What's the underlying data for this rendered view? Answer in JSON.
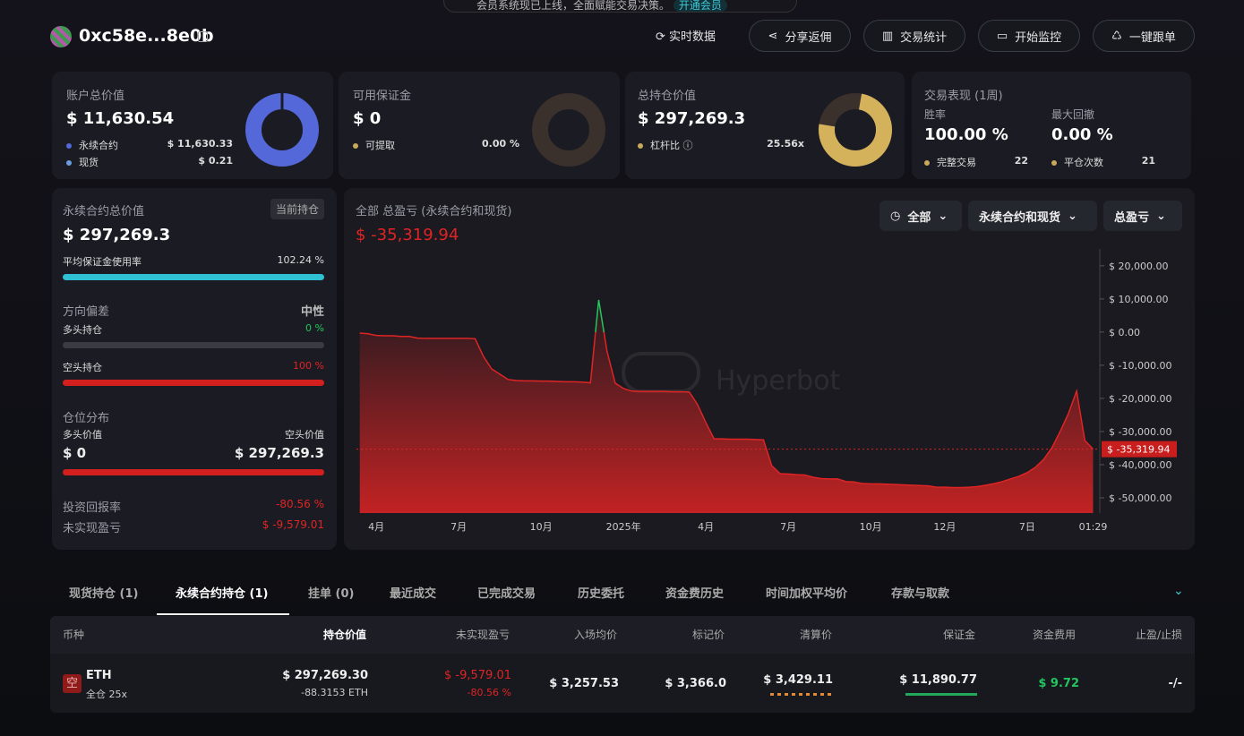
{
  "banner": {
    "text": "会员系统现已上线，全面赋能交易决策。",
    "link": "开通会员"
  },
  "header": {
    "address": "0xc58e...8e0b",
    "buttons": [
      "实时数据",
      "分享返佣",
      "交易统计",
      "开始监控",
      "一键跟单"
    ]
  },
  "cards": [
    {
      "title": "账户总价值",
      "value": "$ 11,630.54",
      "rows": [
        [
          "永续合约",
          "$ 11,630.33"
        ],
        [
          "现货",
          "$ 0.21"
        ]
      ]
    },
    {
      "title": "可用保证金",
      "value": "$ 0",
      "rows": [
        [
          "可提取",
          "0.00 %"
        ]
      ]
    },
    {
      "title": "总持仓价值",
      "value": "$ 297,269.3",
      "rows": [
        [
          "杠杆比",
          "25.56x"
        ]
      ]
    },
    {
      "title": "交易表现 (1周)",
      "stats": [
        [
          "胜率",
          "100.00 %"
        ],
        [
          "最大回撤",
          "0.00 %"
        ]
      ],
      "rows": [
        [
          "完整交易",
          "22"
        ],
        [
          "平仓次数",
          "21"
        ]
      ]
    }
  ],
  "perp_panel": {
    "title": "永续合约总价值",
    "tag": "当前持仓",
    "value": "$ 297,269.3",
    "margin_usage": [
      "平均保证金使用率",
      "102.24 %"
    ],
    "bias": {
      "title": "方向偏差",
      "value": "中性",
      "long": [
        "多头持仓",
        "0 %"
      ],
      "short": [
        "空头持仓",
        "100 %"
      ]
    },
    "distribution": {
      "title": "仓位分布",
      "long_label": "多头价值",
      "short_label": "空头价值",
      "long_value": "$ 0",
      "short_value": "$ 297,269.3"
    },
    "roi": [
      "投资回报率",
      "-80.56 %"
    ],
    "upnl": [
      "未实现盈亏",
      "$ -9,579.01"
    ]
  },
  "chart_data": {
    "type": "area",
    "title": "全部 总盈亏 (永续合约和现货)",
    "value_label": "$ -35,319.94",
    "filters": [
      "全部",
      "永续合约和现货",
      "总盈亏"
    ],
    "watermark": "Hyperbot",
    "color": "#e02424",
    "up_color": "#22c55e",
    "categories": [
      null,
      null,
      "4月",
      null,
      null,
      null,
      null,
      null,
      null,
      null,
      null,
      null,
      "7月",
      null,
      null,
      null,
      null,
      null,
      null,
      null,
      null,
      null,
      "10月",
      null,
      null,
      null,
      null,
      null,
      null,
      null,
      null,
      null,
      "2025年",
      null,
      null,
      null,
      null,
      null,
      null,
      null,
      null,
      null,
      "4月",
      null,
      null,
      null,
      null,
      null,
      null,
      null,
      null,
      null,
      "7月",
      null,
      null,
      null,
      null,
      null,
      null,
      null,
      null,
      null,
      "10月",
      null,
      null,
      null,
      null,
      null,
      null,
      null,
      null,
      "12月",
      null,
      null,
      null,
      null,
      null,
      null,
      null,
      null,
      null,
      "7日",
      null,
      null,
      null,
      null,
      null,
      null,
      null,
      "01:29"
    ],
    "values": [
      -300,
      -500,
      -1000,
      -1100,
      -1100,
      -1300,
      -1300,
      -1800,
      -1900,
      -1900,
      -1900,
      -1900,
      -1900,
      -1900,
      -2000,
      -7300,
      -11100,
      -12700,
      -14300,
      -14600,
      -14700,
      -14700,
      -14800,
      -14800,
      -14900,
      -15000,
      -15000,
      -15100,
      -15300,
      9700,
      -5700,
      -15400,
      -17000,
      -17800,
      -17900,
      -17900,
      -17900,
      -17900,
      -18000,
      -18000,
      -18100,
      -21900,
      -27300,
      -32200,
      -32200,
      -32300,
      -32300,
      -32300,
      -32400,
      -32500,
      -40300,
      -42700,
      -42800,
      -43000,
      -43100,
      -43800,
      -44200,
      -44300,
      -44300,
      -45100,
      -45200,
      -45700,
      -45800,
      -45800,
      -45900,
      -46000,
      -46100,
      -46200,
      -46300,
      -46400,
      -46800,
      -46800,
      -46900,
      -46900,
      -46800,
      -46600,
      -46200,
      -45700,
      -45100,
      -44300,
      -43500,
      -42400,
      -40800,
      -38400,
      -34900,
      -30000,
      -24600,
      -17800,
      -32700,
      -35319.94
    ],
    "ylim": [
      -54600,
      25100
    ],
    "yticks": [
      {
        "value": 20000,
        "label": "$ 20,000.00"
      },
      {
        "value": 10000,
        "label": "$ 10,000.00"
      },
      {
        "value": 0,
        "label": "$ 0.00"
      },
      {
        "value": -10000,
        "label": "$ -10,000.00"
      },
      {
        "value": -20000,
        "label": "$ -20,000.00"
      },
      {
        "value": -30000,
        "label": "$ -30,000.00"
      },
      {
        "value": -40000,
        "label": "$ -40,000.00"
      },
      {
        "value": -50000,
        "label": "$ -50,000.00"
      }
    ],
    "current": {
      "value": -35319.94,
      "label": "$ -35,319.94"
    }
  },
  "positions": {
    "tabs": [
      "现货持仓 (1)",
      "永续合约持仓 (1)",
      "挂单 (0)",
      "最近成交",
      "已完成交易",
      "历史委托",
      "资金费历史",
      "时间加权平均价",
      "存款与取款"
    ],
    "columns": [
      "币种",
      "持仓价值",
      "未实现盈亏",
      "入场均价",
      "标记价",
      "清算价",
      "保证金",
      "资金费用",
      "止盈/止损"
    ],
    "row": {
      "side": "空",
      "coin": "ETH",
      "mode": "全仓 25x",
      "value": "$ 297,269.30",
      "size": "-88.3153 ETH",
      "pnl": "$ -9,579.01",
      "pnl_pct": "-80.56 %",
      "entry": "$ 3,257.53",
      "mark": "$ 3,366.0",
      "liq": "$ 3,429.11",
      "margin": "$ 11,890.77",
      "funding": "$ 9.72",
      "tpsl": "-/-"
    }
  }
}
